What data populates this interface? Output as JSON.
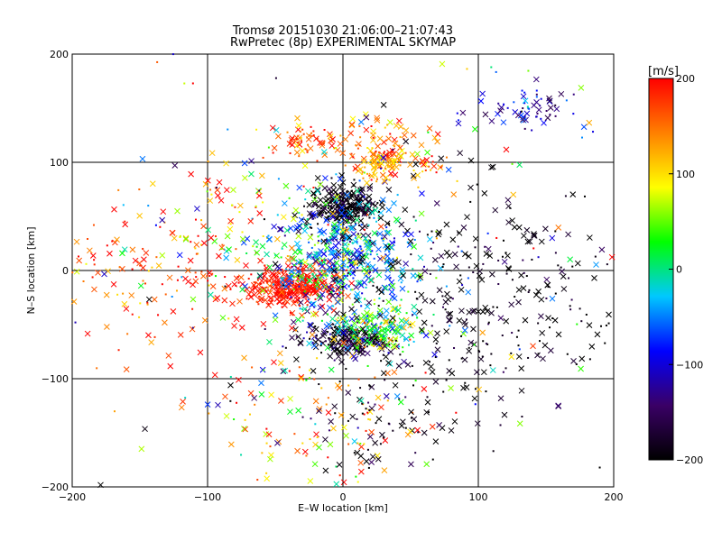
{
  "chart_data": {
    "type": "scatter",
    "title_lines": [
      "Tromsø 20151030 21:06:00–21:07:43",
      "RwPretec (8p) EXPERIMENTAL SKYMAP"
    ],
    "xlabel": "E–W location [km]",
    "ylabel": "N–S location [km]",
    "xlim": [
      -200,
      200
    ],
    "ylim": [
      -200,
      200
    ],
    "x_ticks": [
      -200,
      -100,
      0,
      100,
      200
    ],
    "y_ticks": [
      -200,
      -100,
      0,
      100,
      200
    ],
    "x_tick_labels": [
      "−200",
      "−100",
      "0",
      "100",
      "200"
    ],
    "y_tick_labels": [
      "−200",
      "−100",
      "0",
      "100",
      "200"
    ],
    "grid": true,
    "colorbar": {
      "unit": "[m/s]",
      "range": [
        -200,
        200
      ],
      "ticks": [
        200,
        100,
        0,
        -100,
        -200
      ],
      "tick_labels": [
        "200",
        "100",
        "0",
        "−100",
        "−200"
      ],
      "colormap": [
        "#000000",
        "#3a0066",
        "#0000ff",
        "#00c8ff",
        "#00ff00",
        "#ffff00",
        "#ff8000",
        "#ff0000"
      ]
    },
    "markers": [
      "cross",
      "dot"
    ],
    "clusters": [
      {
        "x": 0,
        "y": 60,
        "sx": 14,
        "sy": 10,
        "n": 260,
        "v": -200,
        "vs": 25
      },
      {
        "x": 5,
        "y": -65,
        "sx": 18,
        "sy": 8,
        "n": 200,
        "v": -185,
        "vs": 40
      },
      {
        "x": -40,
        "y": -15,
        "sx": 18,
        "sy": 10,
        "n": 320,
        "v": 190,
        "vs": 20
      },
      {
        "x": 0,
        "y": 10,
        "sx": 28,
        "sy": 30,
        "n": 520,
        "v": -30,
        "vs": 70
      },
      {
        "x": 25,
        "y": -55,
        "sx": 16,
        "sy": 10,
        "n": 150,
        "v": 40,
        "vs": 60
      },
      {
        "x": 35,
        "y": 110,
        "sx": 25,
        "sy": 12,
        "n": 140,
        "v": 150,
        "vs": 45
      },
      {
        "x": -30,
        "y": 120,
        "sx": 12,
        "sy": 8,
        "n": 50,
        "v": 170,
        "vs": 30
      },
      {
        "x": 30,
        "y": 95,
        "sx": 10,
        "sy": 6,
        "n": 50,
        "v": 110,
        "vs": 20
      },
      {
        "x": 135,
        "y": 150,
        "sx": 18,
        "sy": 12,
        "n": 70,
        "v": -110,
        "vs": 40
      },
      {
        "x": 100,
        "y": -20,
        "sx": 55,
        "sy": 50,
        "n": 330,
        "v": -195,
        "vs": 25
      },
      {
        "x": -150,
        "y": -10,
        "sx": 35,
        "sy": 40,
        "n": 110,
        "v": 175,
        "vs": 40
      },
      {
        "x": -90,
        "y": 30,
        "sx": 30,
        "sy": 40,
        "n": 90,
        "v": 120,
        "vs": 90
      },
      {
        "x": -15,
        "y": -140,
        "sx": 45,
        "sy": 35,
        "n": 120,
        "v": 140,
        "vs": 70
      },
      {
        "x": 30,
        "y": -140,
        "sx": 25,
        "sy": 30,
        "n": 80,
        "v": -190,
        "vs": 30
      },
      {
        "x": 0,
        "y": 0,
        "sx": 120,
        "sy": 110,
        "n": 260,
        "v": 0,
        "vs": 140
      }
    ]
  }
}
